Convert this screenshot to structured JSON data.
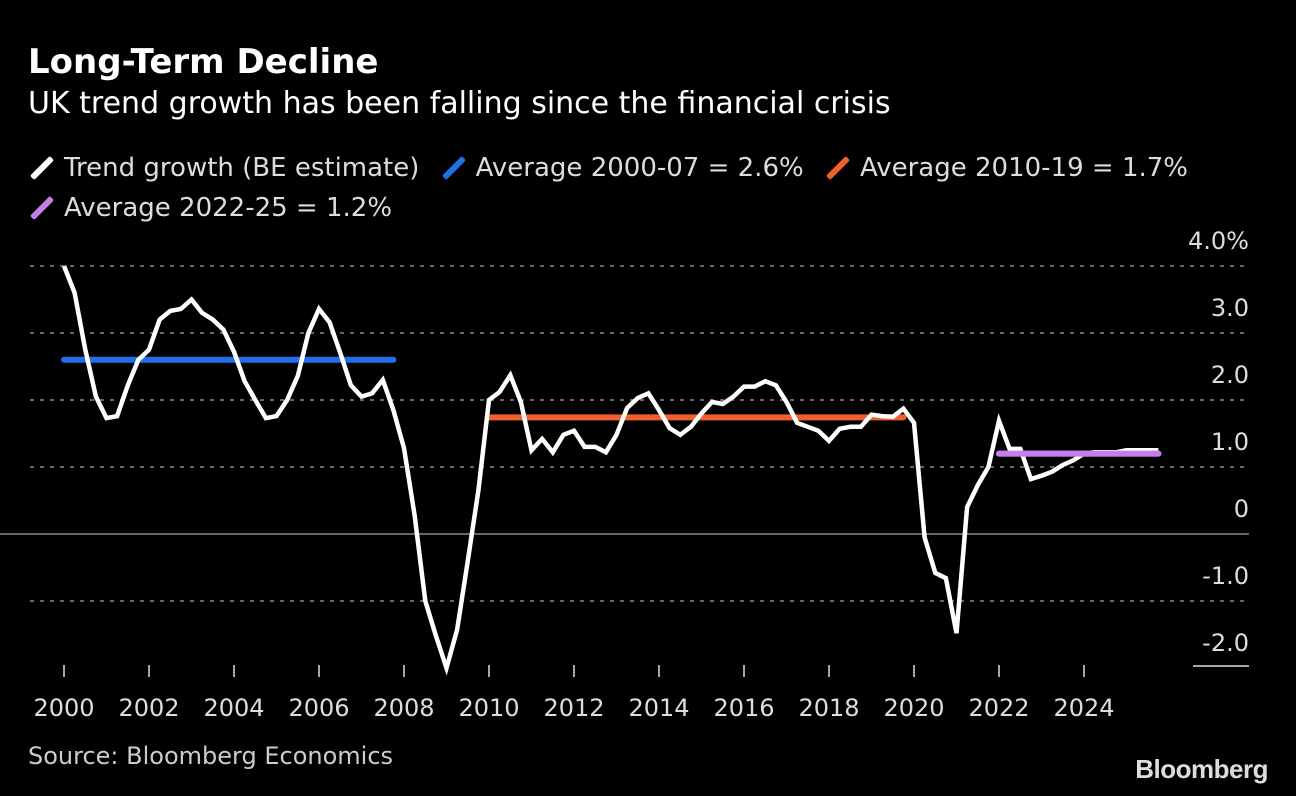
{
  "header": {
    "title": "Long-Term Decline",
    "subtitle": "UK trend growth has been falling since the financial crisis"
  },
  "footer": {
    "source": "Source: Bloomberg Economics",
    "logo": "Bloomberg"
  },
  "chart_data": {
    "type": "line",
    "title": "Long-Term Decline",
    "subtitle": "UK trend growth has been falling since the financial crisis",
    "xlabel": "",
    "ylabel": "",
    "xlim": [
      2000,
      2026
    ],
    "ylim": [
      -2.0,
      4.0
    ],
    "y_ticks": [
      4.0,
      3.0,
      2.0,
      1.0,
      0,
      -1.0,
      -2.0
    ],
    "y_tick_labels": [
      "4.0%",
      "3.0",
      "2.0",
      "1.0",
      "0",
      "-1.0",
      "-2.0"
    ],
    "x_ticks": [
      2000,
      2002,
      2004,
      2006,
      2008,
      2010,
      2012,
      2014,
      2016,
      2018,
      2020,
      2022,
      2024
    ],
    "x_tick_labels": [
      "2000",
      "2002",
      "2004",
      "2006",
      "2008",
      "2010",
      "2012",
      "2014",
      "2016",
      "2018",
      "2020",
      "2022",
      "2024"
    ],
    "grid": "horizontal dotted",
    "y_axis_position": "right",
    "legend_position": "top",
    "legend": [
      {
        "label": "Trend growth (BE estimate)",
        "color": "#ffffff"
      },
      {
        "label": "Average 2000-07 = 2.6%",
        "color": "#1f6fe8"
      },
      {
        "label": "Average 2010-19 = 1.7%",
        "color": "#f0602c"
      },
      {
        "label": "Average 2022-25 = 1.2%",
        "color": "#c77dea"
      }
    ],
    "series": [
      {
        "name": "Trend growth (BE estimate)",
        "color": "#ffffff",
        "x_start": 2000,
        "frequency": "quarterly",
        "values": [
          4.0,
          3.6,
          2.75,
          2.05,
          1.73,
          1.76,
          2.22,
          2.6,
          2.75,
          3.2,
          3.33,
          3.36,
          3.5,
          3.3,
          3.2,
          3.05,
          2.72,
          2.28,
          2.0,
          1.73,
          1.76,
          2.0,
          2.36,
          3.0,
          3.36,
          3.16,
          2.7,
          2.22,
          2.05,
          2.1,
          2.3,
          1.85,
          1.28,
          0.28,
          -1.0,
          -1.52,
          -2.0,
          -1.43,
          -0.4,
          0.65,
          2.0,
          2.12,
          2.37,
          1.97,
          1.25,
          1.42,
          1.22,
          1.48,
          1.54,
          1.3,
          1.3,
          1.22,
          1.48,
          1.88,
          2.03,
          2.1,
          1.85,
          1.58,
          1.48,
          1.6,
          1.8,
          1.97,
          1.94,
          2.05,
          2.2,
          2.2,
          2.28,
          2.22,
          1.97,
          1.66,
          1.6,
          1.54,
          1.39,
          1.57,
          1.6,
          1.6,
          1.78,
          1.76,
          1.75,
          1.87,
          1.66,
          -0.05,
          -0.58,
          -0.66,
          -1.48,
          0.4,
          0.73,
          1.0,
          1.69,
          1.27,
          1.27,
          0.82,
          0.87,
          0.93,
          1.03,
          1.1,
          1.2,
          1.22,
          1.22,
          1.22,
          1.25,
          1.25,
          1.25,
          1.25
        ]
      },
      {
        "name": "Average 2000-07 = 2.6%",
        "color": "#1f6fe8",
        "x": [
          2000,
          2007.75
        ],
        "values": [
          2.6,
          2.6
        ]
      },
      {
        "name": "Average 2010-19 = 1.7%",
        "color": "#f0602c",
        "x": [
          2010,
          2019.75
        ],
        "values": [
          1.74,
          1.74
        ]
      },
      {
        "name": "Average 2022-25 = 1.2%",
        "color": "#c77dea",
        "x": [
          2022,
          2025.75
        ],
        "values": [
          1.2,
          1.2
        ]
      }
    ]
  }
}
